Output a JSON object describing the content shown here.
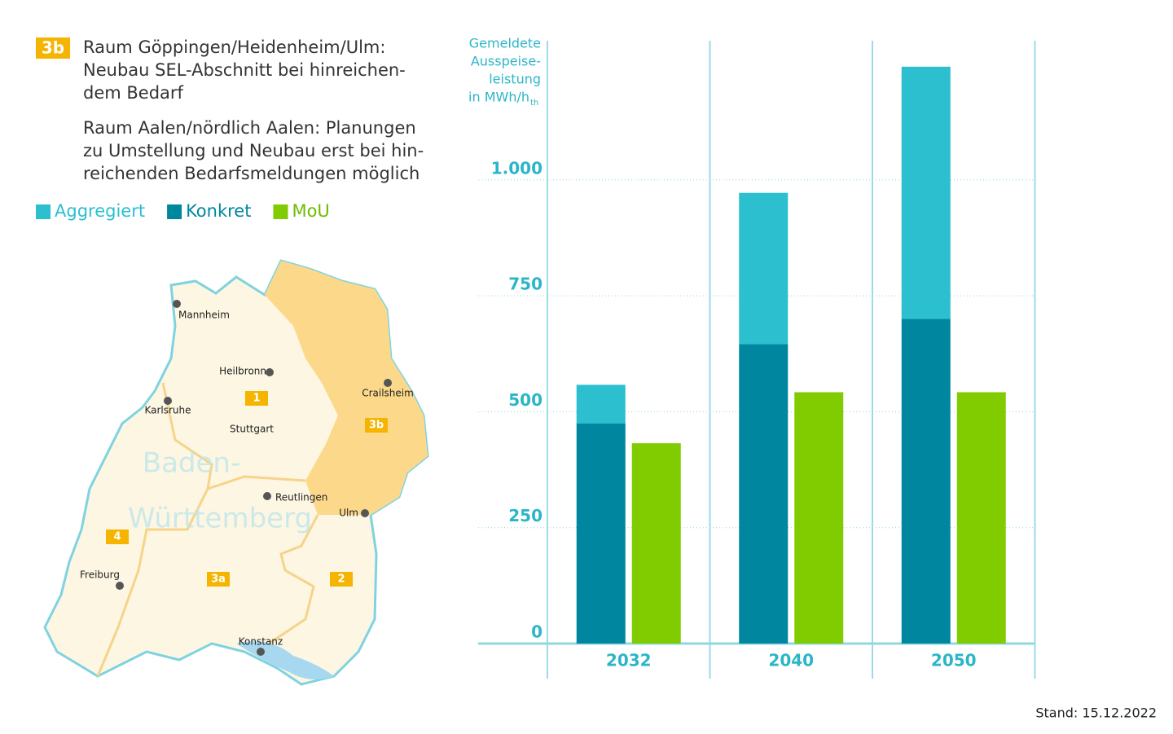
{
  "header": {
    "badge": "3b",
    "paragraph1": [
      "Raum Göppingen/Heidenheim/Ulm:",
      "Neubau SEL-Abschnitt bei hinreichen-",
      "dem Bedarf"
    ],
    "paragraph2": [
      "Raum Aalen/nördlich Aalen: Planungen",
      "zu Umstellung und Neubau erst bei hin-",
      "reichenden Bedarfsmeldungen möglich"
    ]
  },
  "chart_data": {
    "type": "bar",
    "categories": [
      "2032",
      "2040",
      "2050"
    ],
    "series": [
      {
        "name": "Aggregiert",
        "color": "#2bbfd0",
        "values": [
          83,
          326,
          544
        ],
        "stack": "a"
      },
      {
        "name": "Konkret",
        "color": "#00879f",
        "values": [
          475,
          646,
          700
        ],
        "stack": "a"
      },
      {
        "name": "MoU",
        "color": "#80cc00",
        "values": [
          432,
          542,
          542
        ],
        "stack": "b"
      }
    ],
    "ylim": [
      0,
      1300
    ],
    "yticks": [
      0,
      250,
      500,
      750,
      {
        "value": 1000,
        "label": "1.000"
      }
    ],
    "grid": true,
    "y_label": [
      "Gemeldete",
      "Ausspeise-",
      "leistung",
      "in MWh/h"
    ],
    "y_label_subscript": "th"
  },
  "map": {
    "title": [
      "Baden-",
      "Württemberg"
    ],
    "cities": [
      "Mannheim",
      "Heilbronn",
      "Crailsheim",
      "Karlsruhe",
      "Stuttgart",
      "Reutlingen",
      "Ulm",
      "Freiburg",
      "Konstanz"
    ],
    "regions": [
      "1",
      "3b",
      "4",
      "3a",
      "2"
    ]
  },
  "footer": "Stand: 15.12.2022"
}
